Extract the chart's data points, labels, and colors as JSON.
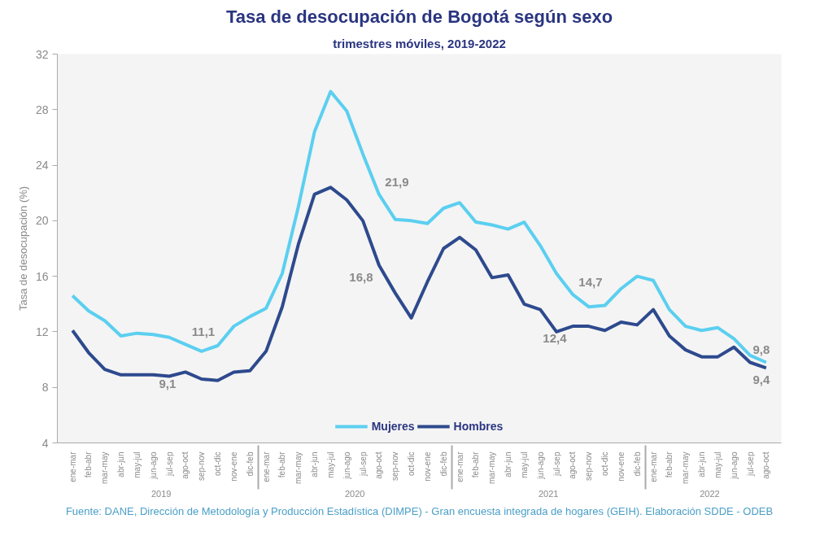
{
  "chart_data": {
    "type": "line",
    "title": "Tasa de desocupación de Bogotá según sexo",
    "subtitle": "trimestres móviles, 2019-2022",
    "ylabel": "Tasa de desocupación (%)",
    "categories": [
      "ene-mar",
      "feb-abr",
      "mar-may",
      "abr-jun",
      "may-jul",
      "jun-ago",
      "jul-sep",
      "ago-oct",
      "sep-nov",
      "oct-dic",
      "nov-ene",
      "dic-feb",
      "ene-mar",
      "feb-abr",
      "mar-may",
      "abr-jun",
      "may-jul",
      "jun-ago",
      "jul-sep",
      "ago-oct",
      "sep-nov",
      "oct-dic",
      "nov-ene",
      "dic-feb",
      "ene-mar",
      "feb-abr",
      "mar-may",
      "abr-jun",
      "may-jul",
      "jun-ago",
      "jul-sep",
      "ago-oct",
      "sep-nov",
      "oct-dic",
      "nov-ene",
      "dic-feb",
      "ene-mar",
      "feb-abr",
      "mar-may",
      "abr-jun",
      "may-jul",
      "jun-ago",
      "jul-sep",
      "ago-oct"
    ],
    "series": [
      {
        "name": "Mujeres",
        "color": "#5bcff0",
        "values": [
          14.6,
          13.5,
          12.8,
          11.7,
          11.9,
          11.8,
          11.6,
          11.1,
          10.6,
          11.0,
          12.4,
          13.1,
          13.7,
          16.2,
          21.0,
          26.4,
          29.3,
          27.9,
          24.8,
          21.9,
          20.1,
          20.0,
          19.8,
          20.9,
          21.3,
          19.9,
          19.7,
          19.4,
          19.9,
          18.2,
          16.2,
          14.7,
          13.8,
          13.9,
          15.1,
          16.0,
          15.7,
          13.6,
          12.4,
          12.1,
          12.3,
          11.5,
          10.3,
          9.8
        ],
        "value_labels": [
          null,
          null,
          null,
          null,
          null,
          null,
          null,
          "11,1",
          null,
          null,
          null,
          null,
          null,
          null,
          null,
          null,
          null,
          null,
          null,
          "21,9",
          null,
          null,
          null,
          null,
          null,
          null,
          null,
          null,
          null,
          null,
          null,
          "14,7",
          null,
          null,
          null,
          null,
          null,
          null,
          null,
          null,
          null,
          null,
          null,
          "9,8"
        ]
      },
      {
        "name": "Hombres",
        "color": "#2e4a8e",
        "values": [
          12.1,
          10.5,
          9.3,
          8.9,
          8.9,
          8.9,
          8.8,
          9.1,
          8.6,
          8.5,
          9.1,
          9.2,
          10.6,
          13.8,
          18.3,
          21.9,
          22.4,
          21.5,
          20.0,
          16.8,
          14.8,
          13.0,
          15.6,
          18.0,
          18.8,
          17.9,
          15.9,
          16.1,
          14.0,
          13.6,
          12.0,
          12.4,
          12.4,
          12.1,
          12.7,
          12.5,
          13.6,
          11.7,
          10.7,
          10.2,
          10.2,
          10.9,
          9.8,
          9.4
        ],
        "value_labels": [
          null,
          null,
          null,
          null,
          null,
          null,
          null,
          "9,1",
          null,
          null,
          null,
          null,
          null,
          null,
          null,
          null,
          null,
          null,
          null,
          "16,8",
          null,
          null,
          null,
          null,
          null,
          null,
          null,
          null,
          null,
          null,
          null,
          "12,4",
          null,
          null,
          null,
          null,
          null,
          null,
          null,
          null,
          null,
          null,
          null,
          "9,4"
        ]
      }
    ],
    "ylim": [
      4,
      32
    ],
    "yticks": [
      4,
      8,
      12,
      16,
      20,
      24,
      28,
      32
    ],
    "grid": false,
    "legend": "bottom",
    "marker": "none",
    "line_style": "solid",
    "annotations": [
      "2019",
      "2020",
      "2021",
      "2022",
      "Fuente: DANE, Dirección de Metodología y Producción Estadística (DIMPE) - Gran encuesta integrada de hogares (GEIH). Elaboración SDDE - ODEB"
    ]
  }
}
